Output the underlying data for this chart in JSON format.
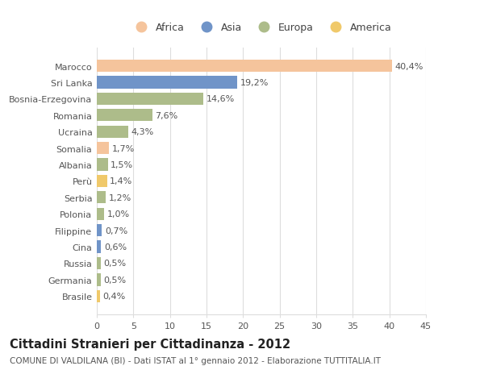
{
  "categories": [
    "Marocco",
    "Sri Lanka",
    "Bosnia-Erzegovina",
    "Romania",
    "Ucraina",
    "Somalia",
    "Albania",
    "Perù",
    "Serbia",
    "Polonia",
    "Filippine",
    "Cina",
    "Russia",
    "Germania",
    "Brasile"
  ],
  "values": [
    40.4,
    19.2,
    14.6,
    7.6,
    4.3,
    1.7,
    1.5,
    1.4,
    1.2,
    1.0,
    0.7,
    0.6,
    0.5,
    0.5,
    0.4
  ],
  "labels": [
    "40,4%",
    "19,2%",
    "14,6%",
    "7,6%",
    "4,3%",
    "1,7%",
    "1,5%",
    "1,4%",
    "1,2%",
    "1,0%",
    "0,7%",
    "0,6%",
    "0,5%",
    "0,5%",
    "0,4%"
  ],
  "colors": [
    "#F5C49C",
    "#7094C8",
    "#ADBC8A",
    "#ADBC8A",
    "#ADBC8A",
    "#F5C49C",
    "#ADBC8A",
    "#F0C96A",
    "#ADBC8A",
    "#ADBC8A",
    "#7094C8",
    "#7094C8",
    "#ADBC8A",
    "#ADBC8A",
    "#F0C96A"
  ],
  "legend_labels": [
    "Africa",
    "Asia",
    "Europa",
    "America"
  ],
  "legend_colors": [
    "#F5C49C",
    "#7094C8",
    "#ADBC8A",
    "#F0C96A"
  ],
  "title": "Cittadini Stranieri per Cittadinanza - 2012",
  "subtitle": "COMUNE DI VALDILANA (BI) - Dati ISTAT al 1° gennaio 2012 - Elaborazione TUTTITALIA.IT",
  "xlim": [
    0,
    45
  ],
  "xticks": [
    0,
    5,
    10,
    15,
    20,
    25,
    30,
    35,
    40,
    45
  ],
  "bg_color": "#FFFFFF",
  "grid_color": "#DDDDDD",
  "bar_height": 0.75,
  "label_fontsize": 8.0,
  "tick_fontsize": 8.0,
  "title_fontsize": 10.5,
  "subtitle_fontsize": 7.5,
  "legend_fontsize": 9.0
}
